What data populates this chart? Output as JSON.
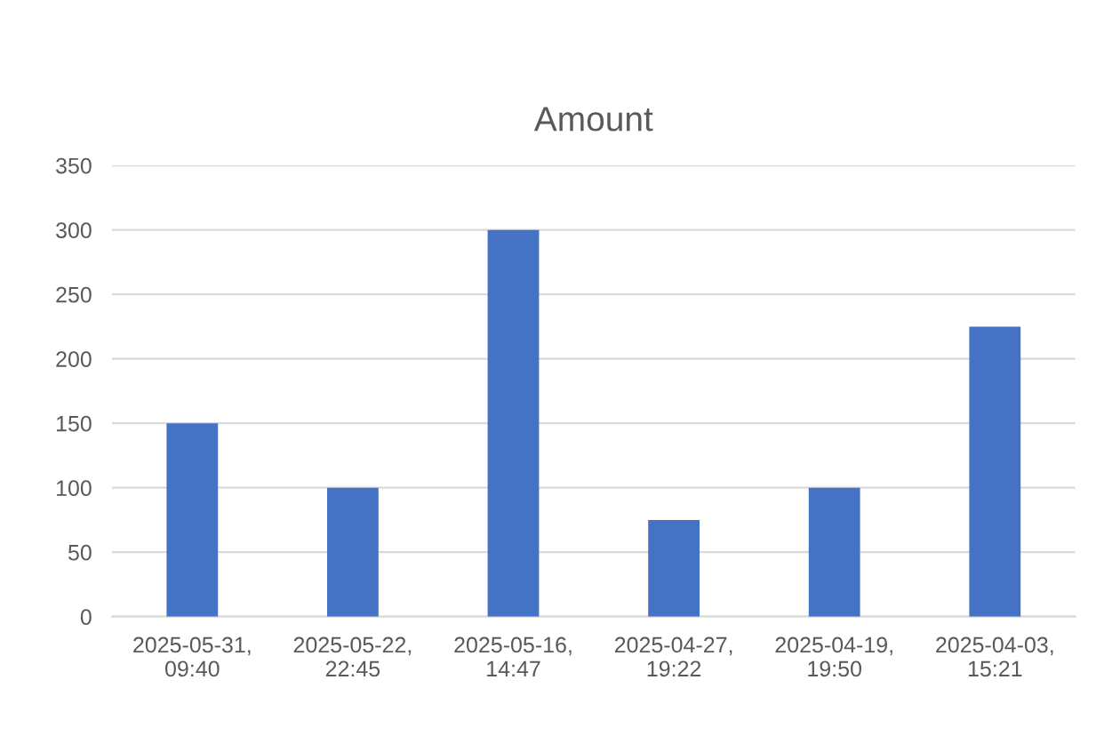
{
  "chart_data": {
    "type": "bar",
    "title": "Amount",
    "categories": [
      "2025-05-31,\n09:40",
      "2025-05-22,\n22:45",
      "2025-05-16,\n14:47",
      "2025-04-27,\n19:22",
      "2025-04-19,\n19:50",
      "2025-04-03,\n15:21"
    ],
    "values": [
      150,
      100,
      300,
      75,
      100,
      225
    ],
    "color": "#4472c4",
    "ylim": [
      0,
      350
    ],
    "yticks": [
      0,
      50,
      100,
      150,
      200,
      250,
      300,
      350
    ],
    "grid": "y",
    "legend": false
  }
}
